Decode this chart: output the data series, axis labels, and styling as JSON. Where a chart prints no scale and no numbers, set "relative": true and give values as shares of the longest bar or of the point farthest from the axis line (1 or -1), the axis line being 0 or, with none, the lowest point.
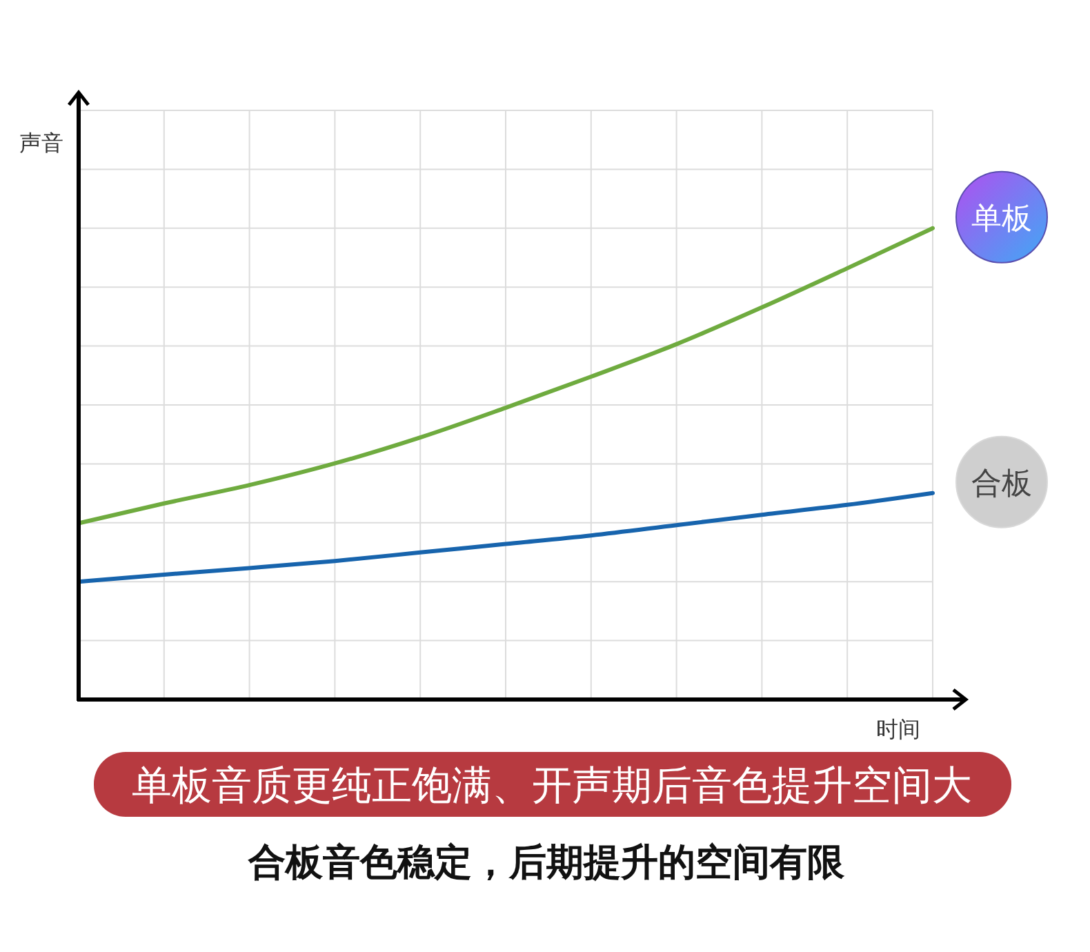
{
  "chart_data": {
    "type": "line",
    "relative": true,
    "xlabel": "时间",
    "ylabel": "声音",
    "categories": [
      null,
      null,
      null,
      null,
      null,
      null,
      null,
      null,
      null,
      null,
      null
    ],
    "series": [
      {
        "name": "单板",
        "color": "#6fab3f",
        "values": [
          0.374,
          0.416,
          0.455,
          0.501,
          0.556,
          0.619,
          0.685,
          0.754,
          0.832,
          0.915,
          1
        ]
      },
      {
        "name": "合板",
        "color": "#1764ad",
        "values": [
          0.25,
          0.265,
          0.279,
          0.294,
          0.312,
          0.33,
          0.348,
          0.37,
          0.392,
          0.413,
          0.438
        ]
      }
    ],
    "grid": true,
    "line_style": "solid",
    "annotations": [
      "单板音质更纯正饱满、开声期后音色提升空间大",
      "合板音色稳定，后期提升的空间有限"
    ]
  }
}
